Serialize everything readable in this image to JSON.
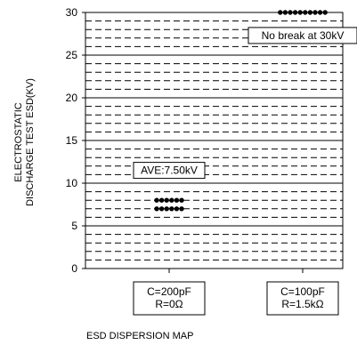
{
  "chart_data": {
    "type": "scatter",
    "ylabel_lines": [
      "ELECTROSTATIC",
      "DISCHARGE TEST ESD(KV)"
    ],
    "ylim": [
      0,
      30
    ],
    "y_ticks": [
      0,
      5,
      10,
      15,
      20,
      25,
      30
    ],
    "grid": true,
    "categories": [
      {
        "lines": [
          "C=200pF",
          "R=0Ω"
        ]
      },
      {
        "lines": [
          "C=100pF",
          "R=1.5kΩ"
        ]
      }
    ],
    "points": [
      {
        "category": 0,
        "values": [
          7,
          7,
          7,
          7,
          7,
          7,
          8,
          8,
          8,
          8,
          8,
          8
        ]
      },
      {
        "category": 1,
        "values": [
          30,
          30,
          30,
          30,
          30,
          30,
          30,
          30,
          30,
          30
        ]
      }
    ],
    "annotations": [
      {
        "category": 0,
        "text": "AVE:7.50kV",
        "y": 11.5
      },
      {
        "category": 1,
        "text": "No break at 30kV",
        "y": 27.3
      }
    ]
  },
  "caption": "ESD DISPERSION MAP"
}
